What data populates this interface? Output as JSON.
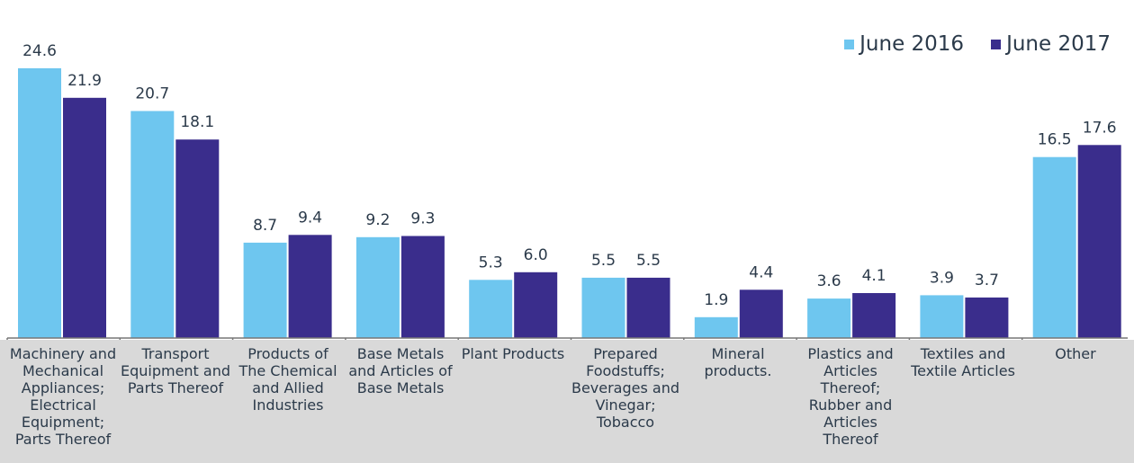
{
  "chart_data": {
    "type": "bar",
    "categories": [
      "Machinery and Mechanical Appliances; Electrical Equipment; Parts Thereof",
      "Transport Equipment and Parts Thereof",
      "Products of The Chemical and Allied Industries",
      "Base Metals and Articles of Base Metals",
      "Plant Products",
      "Prepared Foodstuffs; Beverages and Vinegar; Tobacco",
      "Mineral products.",
      "Plastics and Articles Thereof; Rubber and Articles Thereof",
      "Textiles and Textile Articles",
      "Other"
    ],
    "series": [
      {
        "name": "June 2016",
        "color": "#6ec6ef",
        "values": [
          24.6,
          20.7,
          8.7,
          9.2,
          5.3,
          5.5,
          1.9,
          3.6,
          3.9,
          16.5
        ]
      },
      {
        "name": "June 2017",
        "color": "#3a2d8c",
        "values": [
          21.9,
          18.1,
          9.4,
          9.3,
          6.0,
          5.5,
          4.4,
          4.1,
          3.7,
          17.6
        ]
      }
    ],
    "title": "",
    "xlabel": "",
    "ylabel": "",
    "ylim": [
      0,
      25
    ],
    "grid": false,
    "legend_position": "top-right",
    "data_labels": true
  }
}
